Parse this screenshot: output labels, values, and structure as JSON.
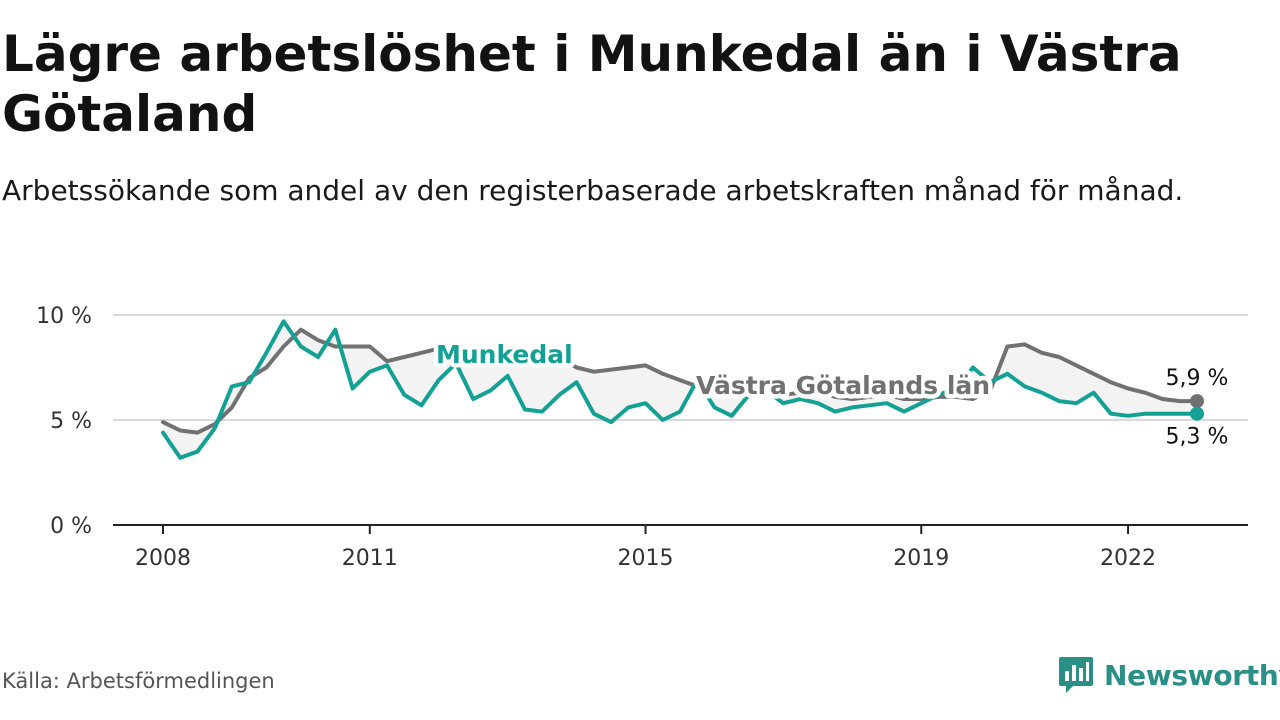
{
  "title": "Lägre arbetslöshet i Munkedal än i Västra Götaland",
  "subtitle": "Arbetssökande som andel av den registerbaserade arbetskraften månad för månad.",
  "source": "Källa: Arbetsförmedlingen",
  "brand": {
    "name": "Newsworthy",
    "icon": "newsworthy-logo-icon"
  },
  "colors": {
    "munkedal": "#13a195",
    "vastra": "#717171",
    "axis": "#222222",
    "grid": "#d9d9d9",
    "fill": "#f3f3f3"
  },
  "chart_data": {
    "type": "line",
    "title": "Lägre arbetslöshet i Munkedal än i Västra Götaland",
    "xlabel": "",
    "ylabel": "",
    "x_range": [
      2008,
      2023.25
    ],
    "ylim": [
      0,
      10
    ],
    "y_ticks": [
      {
        "value": 0,
        "label": "0 %"
      },
      {
        "value": 5,
        "label": "5 %"
      },
      {
        "value": 10,
        "label": "10 %"
      }
    ],
    "x_ticks": [
      {
        "value": 2008,
        "label": "2008"
      },
      {
        "value": 2011,
        "label": "2011"
      },
      {
        "value": 2015,
        "label": "2015"
      },
      {
        "value": 2019,
        "label": "2019"
      },
      {
        "value": 2022,
        "label": "2022"
      }
    ],
    "grid": "horizontal",
    "series": [
      {
        "name": "Västra Götalands län",
        "label": "Västra Götalands län",
        "end_label": "5,9 %",
        "x": [
          2008,
          2008.25,
          2008.5,
          2008.75,
          2009,
          2009.25,
          2009.5,
          2009.75,
          2010,
          2010.25,
          2010.5,
          2010.75,
          2011,
          2011.25,
          2011.5,
          2011.75,
          2012,
          2012.25,
          2012.5,
          2012.75,
          2013,
          2013.25,
          2013.5,
          2013.75,
          2014,
          2014.25,
          2014.5,
          2014.75,
          2015,
          2015.25,
          2015.5,
          2015.75,
          2016,
          2016.25,
          2016.5,
          2016.75,
          2017,
          2017.25,
          2017.5,
          2017.75,
          2018,
          2018.25,
          2018.5,
          2018.75,
          2019,
          2019.25,
          2019.5,
          2019.75,
          2020,
          2020.25,
          2020.5,
          2020.75,
          2021,
          2021.25,
          2021.5,
          2021.75,
          2022,
          2022.25,
          2022.5,
          2022.75,
          2023
        ],
        "values": [
          4.9,
          4.5,
          4.4,
          4.8,
          5.6,
          7.0,
          7.5,
          8.5,
          9.3,
          8.8,
          8.5,
          8.5,
          8.5,
          7.8,
          8.0,
          8.2,
          8.4,
          8.4,
          8.4,
          8.1,
          7.8,
          8.2,
          8.2,
          8.0,
          7.5,
          7.3,
          7.4,
          7.5,
          7.6,
          7.2,
          6.9,
          6.6,
          6.5,
          6.5,
          6.4,
          6.4,
          6.2,
          6.3,
          6.4,
          6.1,
          6.0,
          6.1,
          6.2,
          6.0,
          6.0,
          6.1,
          6.1,
          6.0,
          6.4,
          8.5,
          8.6,
          8.2,
          8.0,
          7.6,
          7.2,
          6.8,
          6.5,
          6.3,
          6.0,
          5.9,
          5.9
        ]
      },
      {
        "name": "Munkedal",
        "label": "Munkedal",
        "end_label": "5,3 %",
        "x": [
          2008,
          2008.25,
          2008.5,
          2008.75,
          2009,
          2009.25,
          2009.5,
          2009.75,
          2010,
          2010.25,
          2010.5,
          2010.75,
          2011,
          2011.25,
          2011.5,
          2011.75,
          2012,
          2012.25,
          2012.5,
          2012.75,
          2013,
          2013.25,
          2013.5,
          2013.75,
          2014,
          2014.25,
          2014.5,
          2014.75,
          2015,
          2015.25,
          2015.5,
          2015.75,
          2016,
          2016.25,
          2016.5,
          2016.75,
          2017,
          2017.25,
          2017.5,
          2017.75,
          2018,
          2018.25,
          2018.5,
          2018.75,
          2019,
          2019.25,
          2019.5,
          2019.75,
          2020,
          2020.25,
          2020.5,
          2020.75,
          2021,
          2021.25,
          2021.5,
          2021.75,
          2022,
          2022.25,
          2022.5,
          2022.75,
          2023
        ],
        "values": [
          4.4,
          3.2,
          3.5,
          4.6,
          6.6,
          6.8,
          8.2,
          9.7,
          8.5,
          8.0,
          9.3,
          6.5,
          7.3,
          7.6,
          6.2,
          5.7,
          6.9,
          7.7,
          6.0,
          6.4,
          7.1,
          5.5,
          5.4,
          6.2,
          6.8,
          5.3,
          4.9,
          5.6,
          5.8,
          5.0,
          5.4,
          6.9,
          5.6,
          5.2,
          6.2,
          6.4,
          5.8,
          6.0,
          5.8,
          5.4,
          5.6,
          5.7,
          5.8,
          5.4,
          5.8,
          6.2,
          6.5,
          7.5,
          6.8,
          7.2,
          6.6,
          6.3,
          5.9,
          5.8,
          6.3,
          5.3,
          5.2,
          5.3,
          5.3,
          5.3,
          5.3
        ]
      }
    ]
  }
}
